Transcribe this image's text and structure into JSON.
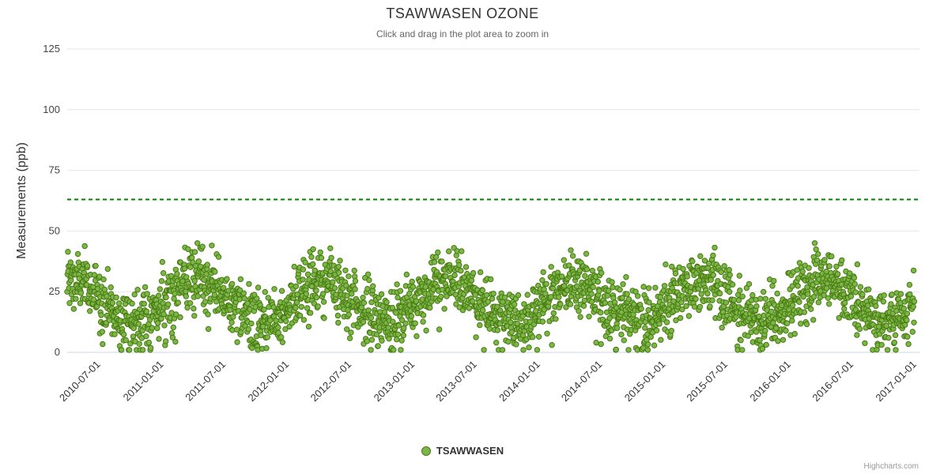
{
  "credits": "Highcharts.com",
  "chart_data": {
    "type": "scatter",
    "title": "TSAWWASEN OZONE",
    "subtitle": "Click and drag in the plot area to zoom in",
    "xlabel": "",
    "ylabel": "Measurements (ppb)",
    "ylim": [
      0,
      125
    ],
    "yticks": [
      0,
      25,
      50,
      75,
      100,
      125
    ],
    "xlim": [
      "2010-04-01",
      "2017-01-15"
    ],
    "xticks": [
      "2010-07-01",
      "2011-01-01",
      "2011-07-01",
      "2012-01-01",
      "2012-07-01",
      "2013-01-01",
      "2013-07-01",
      "2014-01-01",
      "2014-07-01",
      "2015-01-01",
      "2015-07-01",
      "2016-01-01",
      "2016-07-01",
      "2017-01-01"
    ],
    "grid": "horizontal-only",
    "legend_position": "bottom-center",
    "background": "#ffffff",
    "gridline_color": "#e6e6e6",
    "axis_line_color": "#ccd6eb",
    "threshold_line": {
      "value": 63,
      "color": "#008000",
      "style": "dashed",
      "width": 2
    },
    "series": [
      {
        "name": "TSAWWASEN",
        "type": "scatter",
        "color": "#7AB648",
        "marker_stroke": "#4A7A10",
        "marker_radius": 3.2,
        "data_model": {
          "description": "Daily ozone scatter, seasonal cycle: spring peak ~30 ppb mean (envelope up to ~45), late-autumn trough ~13 ppb mean (down to ~0-2), repeating yearly 2010-2016",
          "start": "2010-04-01",
          "end": "2016-12-31",
          "interval_days": 1,
          "mean_ppb": 21,
          "seasonal_amplitude_ppb": 8.5,
          "seasonal_peak_day_of_year": 105,
          "noise_sd_ppb": 6.5,
          "value_range": [
            1,
            45
          ],
          "seed": 1234
        }
      }
    ]
  }
}
